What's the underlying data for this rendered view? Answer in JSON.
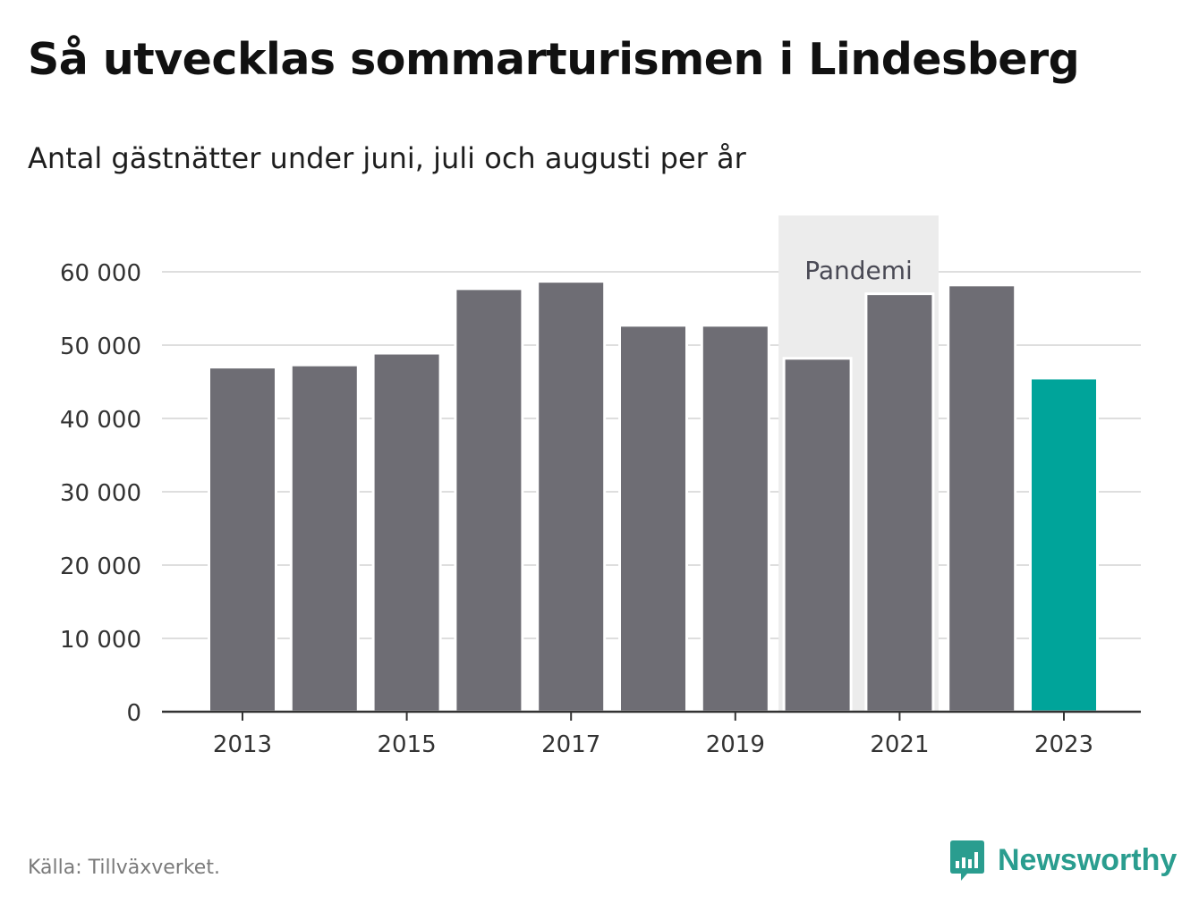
{
  "title": "Så utvecklas sommarturismen i Lindesberg",
  "subtitle": "Antal gästnätter under juni, juli och augusti per år",
  "source": "Källa: Tillväxverket.",
  "brand": {
    "name": "Newsworthy",
    "icon": "newsworthy-logo-icon",
    "color": "#2a9d8f"
  },
  "chart_data": {
    "type": "bar",
    "categories": [
      2013,
      2014,
      2015,
      2016,
      2017,
      2018,
      2019,
      2020,
      2021,
      2022,
      2023
    ],
    "values": [
      47000,
      47300,
      48900,
      57700,
      58700,
      52700,
      52700,
      48200,
      57000,
      58200,
      45500
    ],
    "x_tick_labels": [
      "2013",
      "2015",
      "2017",
      "2019",
      "2021",
      "2023"
    ],
    "y_ticks": [
      0,
      10000,
      20000,
      30000,
      40000,
      50000,
      60000
    ],
    "y_tick_labels": [
      "0",
      "10 000",
      "20 000",
      "30 000",
      "40 000",
      "50 000",
      "60 000"
    ],
    "ylim": [
      0,
      60000
    ],
    "grid": true,
    "highlight": {
      "category": 2023,
      "color": "#00a49a"
    },
    "bar_color": "#6e6d74",
    "annotation": {
      "label": "Pandemi",
      "from": 2020,
      "to": 2021,
      "color": "#ececec"
    },
    "xlabel": "",
    "ylabel": ""
  }
}
